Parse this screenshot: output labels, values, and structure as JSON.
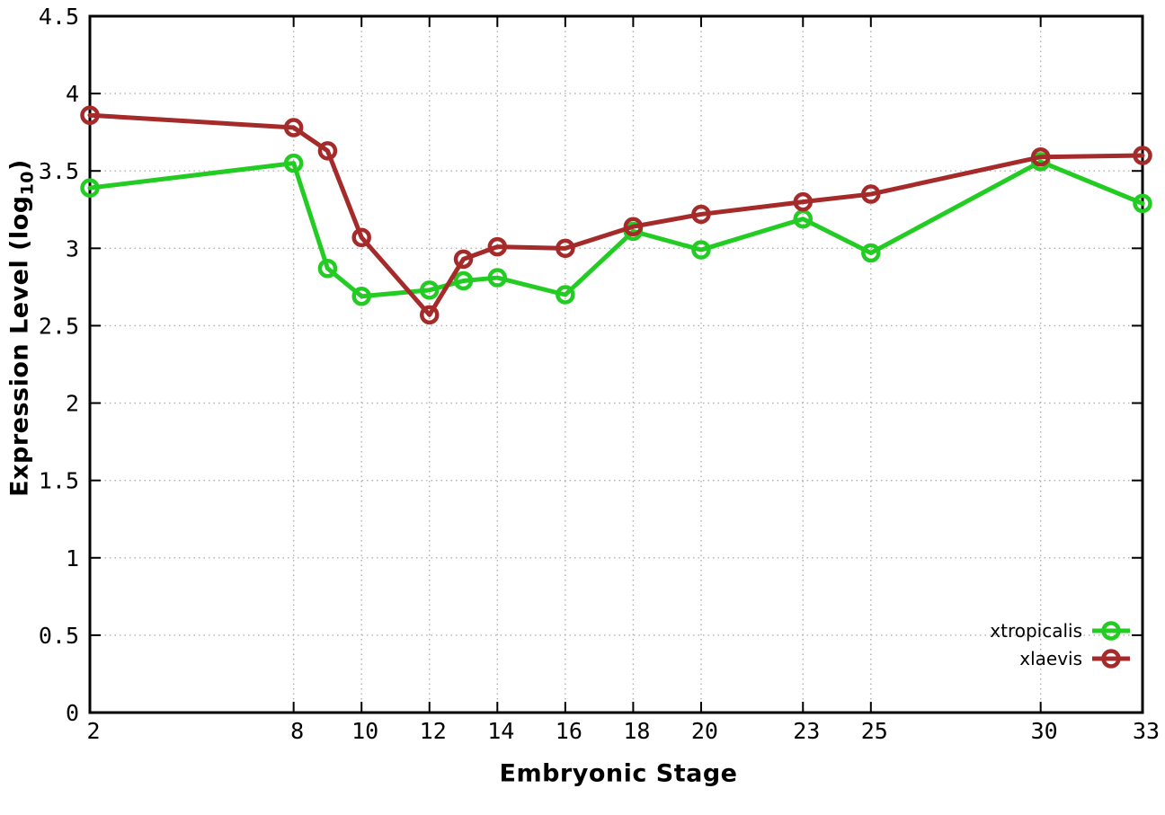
{
  "figure": {
    "background": "#ffffff",
    "border_color": "#000000",
    "grid_color": "#b0b0b0",
    "tick_label_color": "#000000"
  },
  "chart_data": {
    "type": "line",
    "title": "",
    "xlabel": "Embryonic Stage",
    "ylabel": "Expression Level (log10)",
    "ylabel_parts": {
      "base": "Expression Level (log",
      "sub": "10",
      "close": ")"
    },
    "x": [
      2,
      8,
      9,
      10,
      12,
      13,
      14,
      16,
      18,
      20,
      23,
      25,
      30,
      33
    ],
    "series": [
      {
        "name": "xtropicalis",
        "color": "#22cc22",
        "values": [
          3.39,
          3.55,
          2.87,
          2.69,
          2.73,
          2.79,
          2.81,
          2.7,
          3.11,
          2.99,
          3.19,
          2.97,
          3.56,
          3.29
        ]
      },
      {
        "name": "xlaevis",
        "color": "#a52a2a",
        "values": [
          3.86,
          3.78,
          3.63,
          3.07,
          2.57,
          2.93,
          3.01,
          3.0,
          3.14,
          3.22,
          3.3,
          3.35,
          3.59,
          3.6
        ]
      }
    ],
    "xlim": [
      2,
      33
    ],
    "ylim": [
      0,
      4.5
    ],
    "xticks": [
      2,
      8,
      10,
      12,
      14,
      16,
      18,
      20,
      23,
      25,
      30,
      33
    ],
    "xtick_labels": [
      "2",
      "8",
      "10",
      "12",
      "14",
      "16",
      "18",
      "20",
      "23",
      "25",
      "30",
      "33"
    ],
    "yticks": [
      0,
      0.5,
      1,
      1.5,
      2,
      2.5,
      3,
      3.5,
      4,
      4.5
    ],
    "ytick_labels": [
      "0",
      "0.5",
      "1",
      "1.5",
      "2",
      "2.5",
      "3",
      "3.5",
      "4",
      "4.5"
    ],
    "grid": true,
    "grid_style": "dotted",
    "marker": "open-circle",
    "legend_position": "inside-bottom-right",
    "legend": [
      "xtropicalis",
      "xlaevis"
    ]
  }
}
